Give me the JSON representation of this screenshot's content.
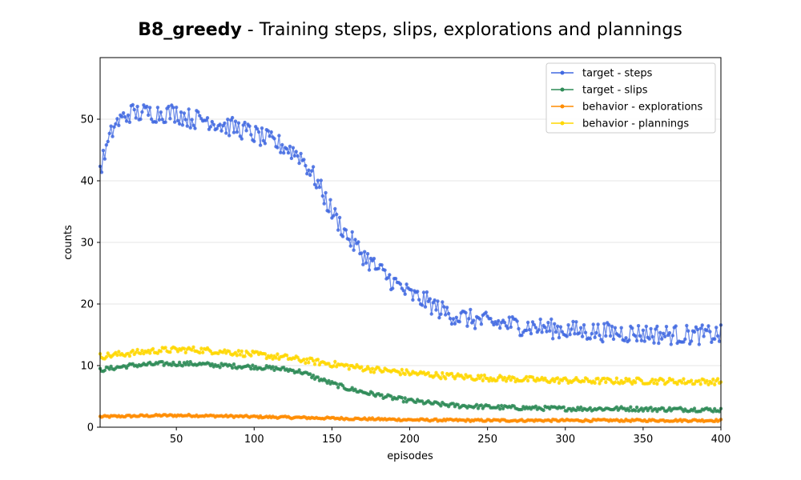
{
  "chart_data": {
    "type": "line",
    "title_bold": "B8_greedy",
    "title_rest": " - Training steps, slips, explorations and plannings",
    "xlabel": "episodes",
    "ylabel": "counts",
    "xlim": [
      1,
      400
    ],
    "ylim": [
      0,
      60
    ],
    "xticks": [
      50,
      100,
      150,
      200,
      250,
      300,
      350,
      400
    ],
    "yticks": [
      0,
      10,
      20,
      30,
      40,
      50
    ],
    "grid": "horizontal",
    "legend_position": "top-right",
    "series": [
      {
        "name": "target - steps",
        "color": "#4169e1",
        "points": [
          [
            1,
            42
          ],
          [
            10,
            49
          ],
          [
            20,
            51
          ],
          [
            30,
            51
          ],
          [
            40,
            51
          ],
          [
            50,
            51
          ],
          [
            60,
            50
          ],
          [
            70,
            50
          ],
          [
            80,
            49
          ],
          [
            90,
            48.5
          ],
          [
            100,
            47.5
          ],
          [
            110,
            46.5
          ],
          [
            120,
            45.5
          ],
          [
            130,
            44
          ],
          [
            140,
            40
          ],
          [
            150,
            35
          ],
          [
            160,
            31
          ],
          [
            170,
            28
          ],
          [
            180,
            25.5
          ],
          [
            190,
            23.5
          ],
          [
            200,
            21.5
          ],
          [
            210,
            20.5
          ],
          [
            220,
            19
          ],
          [
            230,
            18
          ],
          [
            240,
            17.5
          ],
          [
            250,
            17
          ],
          [
            260,
            16.8
          ],
          [
            270,
            16.5
          ],
          [
            280,
            16.3
          ],
          [
            290,
            16
          ],
          [
            300,
            15.8
          ],
          [
            310,
            15.6
          ],
          [
            320,
            15.5
          ],
          [
            330,
            15.4
          ],
          [
            340,
            15.3
          ],
          [
            350,
            15.2
          ],
          [
            360,
            15.1
          ],
          [
            370,
            15
          ],
          [
            380,
            15
          ],
          [
            390,
            15
          ],
          [
            400,
            15
          ]
        ]
      },
      {
        "name": "target - slips",
        "color": "#2e8b57",
        "points": [
          [
            1,
            9.3
          ],
          [
            20,
            10
          ],
          [
            40,
            10.3
          ],
          [
            60,
            10.3
          ],
          [
            80,
            10
          ],
          [
            100,
            9.8
          ],
          [
            120,
            9.4
          ],
          [
            130,
            9
          ],
          [
            140,
            8
          ],
          [
            150,
            7.1
          ],
          [
            160,
            6.3
          ],
          [
            170,
            5.7
          ],
          [
            180,
            5.2
          ],
          [
            190,
            4.7
          ],
          [
            200,
            4.3
          ],
          [
            210,
            4
          ],
          [
            220,
            3.7
          ],
          [
            230,
            3.5
          ],
          [
            240,
            3.4
          ],
          [
            250,
            3.3
          ],
          [
            260,
            3.2
          ],
          [
            280,
            3.1
          ],
          [
            300,
            3
          ],
          [
            320,
            3
          ],
          [
            340,
            3
          ],
          [
            360,
            2.9
          ],
          [
            380,
            2.9
          ],
          [
            400,
            2.8
          ]
        ]
      },
      {
        "name": "behavior - explorations",
        "color": "#ff8c00",
        "points": [
          [
            1,
            1.7
          ],
          [
            20,
            1.8
          ],
          [
            40,
            1.9
          ],
          [
            60,
            1.9
          ],
          [
            80,
            1.8
          ],
          [
            100,
            1.7
          ],
          [
            120,
            1.6
          ],
          [
            140,
            1.5
          ],
          [
            160,
            1.4
          ],
          [
            180,
            1.3
          ],
          [
            200,
            1.2
          ],
          [
            220,
            1.15
          ],
          [
            240,
            1.1
          ],
          [
            260,
            1.1
          ],
          [
            280,
            1.1
          ],
          [
            300,
            1.1
          ],
          [
            320,
            1.1
          ],
          [
            340,
            1.1
          ],
          [
            360,
            1.1
          ],
          [
            380,
            1.1
          ],
          [
            400,
            1.1
          ]
        ]
      },
      {
        "name": "behavior - plannings",
        "color": "#ffd700",
        "points": [
          [
            1,
            11.5
          ],
          [
            20,
            12
          ],
          [
            40,
            12.5
          ],
          [
            60,
            12.6
          ],
          [
            80,
            12.3
          ],
          [
            100,
            11.8
          ],
          [
            120,
            11.3
          ],
          [
            140,
            10.6
          ],
          [
            160,
            9.9
          ],
          [
            180,
            9.3
          ],
          [
            200,
            8.8
          ],
          [
            220,
            8.4
          ],
          [
            240,
            8.1
          ],
          [
            260,
            7.9
          ],
          [
            280,
            7.7
          ],
          [
            300,
            7.6
          ],
          [
            320,
            7.5
          ],
          [
            340,
            7.5
          ],
          [
            360,
            7.5
          ],
          [
            380,
            7.4
          ],
          [
            400,
            7.4
          ]
        ]
      }
    ]
  }
}
